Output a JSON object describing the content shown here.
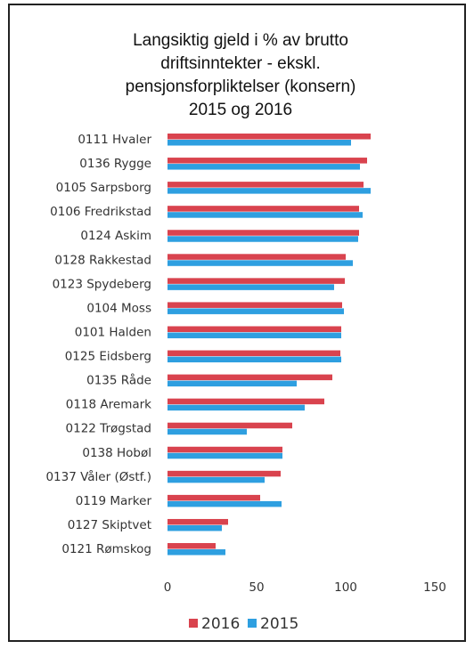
{
  "chart_data": {
    "type": "barh",
    "title": [
      "Langsiktig gjeld i % av brutto",
      "driftsinntekter - ekskl.",
      "pensjonsforpliktelser (konsern)",
      "2015 og 2016"
    ],
    "categories": [
      "0111 Hvaler",
      "0136 Rygge",
      "0105 Sarpsborg",
      "0106 Fredrikstad",
      "0124 Askim",
      "0128 Rakkestad",
      "0123 Spydeberg",
      "0104 Moss",
      "0101 Halden",
      "0125 Eidsberg",
      "0135 Råde",
      "0118 Aremark",
      "0122 Trøgstad",
      "0138 Hobøl",
      "0137 Våler (Østf.)",
      "0119 Marker",
      "0127 Skiptvet",
      "0121 Rømskog"
    ],
    "series": [
      {
        "name": "2016",
        "color": "#d9434e",
        "values": [
          114,
          112,
          110,
          107.5,
          107.5,
          100,
          99.5,
          98,
          97.5,
          97,
          92.5,
          88,
          70,
          64.5,
          63.5,
          52,
          34,
          27
        ]
      },
      {
        "name": "2015",
        "color": "#2e9fe0",
        "values": [
          103,
          108,
          114,
          109.5,
          107,
          104,
          93.5,
          99,
          97.5,
          97.5,
          72.5,
          77,
          44.5,
          64.5,
          54.5,
          64,
          30.5,
          32.5
        ]
      }
    ],
    "xlim": [
      0,
      150
    ],
    "xticks": [
      0,
      50,
      100,
      150
    ],
    "grid": false,
    "legend": "bottom"
  }
}
